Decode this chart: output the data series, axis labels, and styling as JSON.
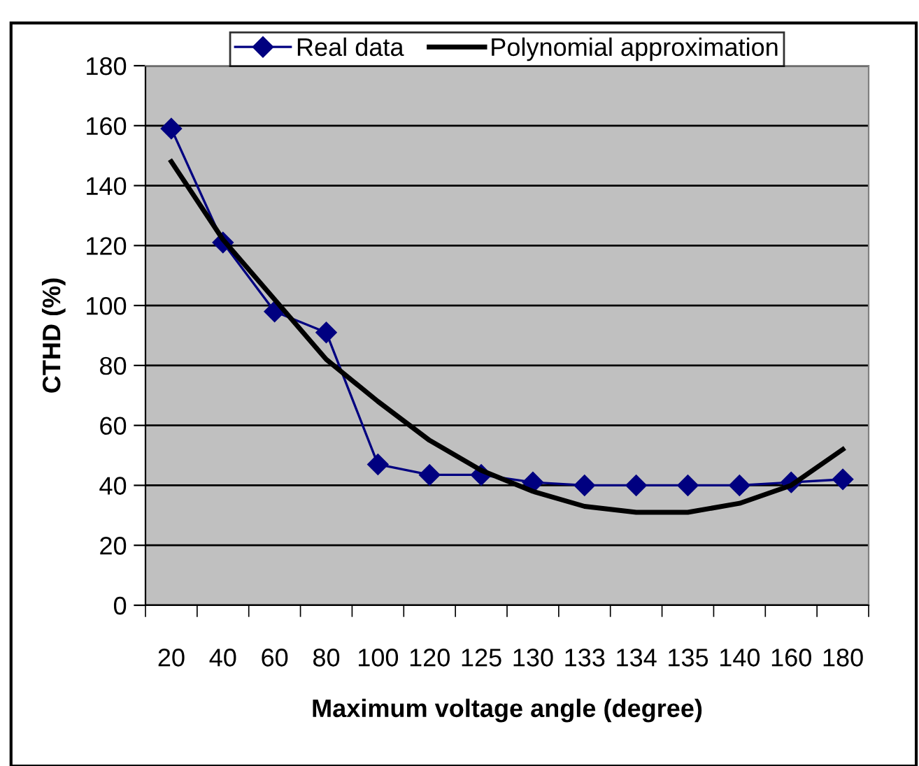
{
  "chart_data": {
    "type": "line",
    "xlabel": "Maximum voltage angle (degree)",
    "ylabel": "CTHD (%)",
    "categories": [
      "20",
      "40",
      "60",
      "80",
      "100",
      "120",
      "125",
      "130",
      "133",
      "134",
      "135",
      "140",
      "160",
      "180"
    ],
    "series": [
      {
        "name": "Real data",
        "color": "#000080",
        "marker": "diamond",
        "line_style": "solid",
        "values": [
          159,
          121,
          98,
          91,
          47,
          43.5,
          43.5,
          41,
          40,
          40,
          40,
          40,
          41,
          42
        ]
      },
      {
        "name": "Polynomial approximation",
        "color": "#000000",
        "marker": "none",
        "line_style": "solid",
        "values": [
          148,
          122,
          102,
          82,
          68,
          55,
          45,
          38,
          33,
          31,
          31,
          34,
          40,
          52
        ]
      }
    ],
    "ylim": [
      0,
      180
    ],
    "yticks": [
      0,
      20,
      40,
      60,
      80,
      100,
      120,
      140,
      160,
      180
    ],
    "grid": "y",
    "legend": "top"
  }
}
